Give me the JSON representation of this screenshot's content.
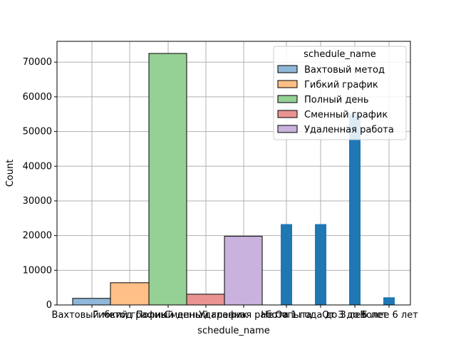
{
  "chart_data": {
    "type": "bar",
    "xlabel": "schedule_name",
    "ylabel": "Count",
    "ylim": [
      0,
      76000
    ],
    "yticks": [
      0,
      10000,
      20000,
      30000,
      40000,
      50000,
      60000,
      70000
    ],
    "grid": true,
    "categories": [
      "Вахтовый метод",
      "Гибкий график",
      "Полный день",
      "Сменный график",
      "Удаленная работа",
      "Нет опыта",
      "От 1 года до 3 лет",
      "От 3 до 6 лет",
      "Более 6 лет"
    ],
    "histogram_series": [
      {
        "name": "Вахтовый метод",
        "value": 1900,
        "color": "#8fb7d9"
      },
      {
        "name": "Гибкий график",
        "value": 6400,
        "color": "#ffbf86"
      },
      {
        "name": "Полный день",
        "value": 72500,
        "color": "#95d095"
      },
      {
        "name": "Сменный график",
        "value": 3100,
        "color": "#ea9393"
      },
      {
        "name": "Удаленная работа",
        "value": 19800,
        "color": "#c9b2dd"
      }
    ],
    "count_bars": [
      {
        "category": "Нет опыта",
        "value": 23300
      },
      {
        "category": "От 1 года до 3 лет",
        "value": 23300
      },
      {
        "category": "От 3 до 6 лет",
        "value": 55000
      },
      {
        "category": "Более 6 лет",
        "value": 2200
      }
    ],
    "count_bar_color": "#1f77b4",
    "legend": {
      "title": "schedule_name",
      "placement": "top-right",
      "entries": [
        {
          "label": "Вахтовый метод",
          "color": "#8fb7d9"
        },
        {
          "label": "Гибкий график",
          "color": "#ffbf86"
        },
        {
          "label": "Полный день",
          "color": "#95d095"
        },
        {
          "label": "Сменный график",
          "color": "#ea9393"
        },
        {
          "label": "Удаленная работа",
          "color": "#c9b2dd"
        }
      ]
    }
  }
}
